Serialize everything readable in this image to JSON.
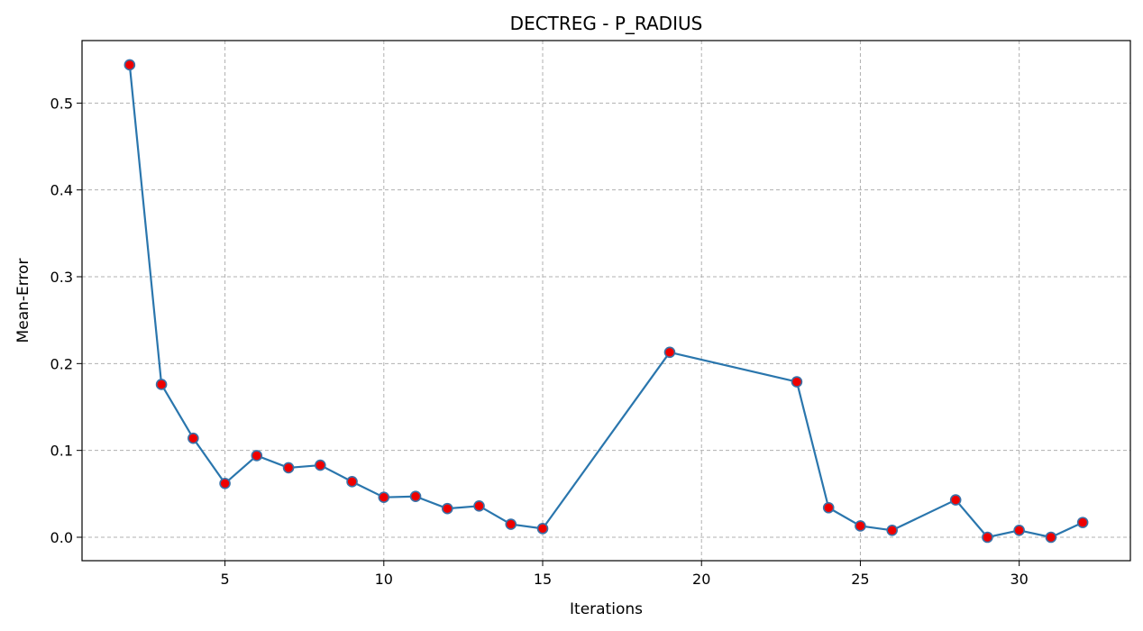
{
  "chart_data": {
    "type": "line",
    "title": "DECTREG - P_RADIUS",
    "xlabel": "Iterations",
    "ylabel": "Mean-Error",
    "xlim": [
      0.5,
      33.5
    ],
    "ylim": [
      -0.027,
      0.572
    ],
    "xticks": [
      5,
      10,
      15,
      20,
      25,
      30
    ],
    "yticks": [
      0.0,
      0.1,
      0.2,
      0.3,
      0.4,
      0.5
    ],
    "grid": true,
    "series": [
      {
        "x": [
          2,
          3,
          4,
          5,
          6,
          7,
          8,
          9,
          10,
          11,
          12,
          13,
          14,
          15,
          19,
          23,
          24,
          25,
          26,
          28,
          29,
          30,
          31,
          32
        ],
        "y": [
          0.544,
          0.176,
          0.114,
          0.062,
          0.094,
          0.08,
          0.083,
          0.064,
          0.046,
          0.047,
          0.033,
          0.036,
          0.015,
          0.01,
          0.213,
          0.179,
          0.034,
          0.013,
          0.008,
          0.043,
          0.0,
          0.008,
          0.0,
          0.017
        ],
        "line_color": "#2a76ad",
        "marker_face_color": "#ee0000",
        "marker_edge_color": "#3a72a8"
      }
    ]
  },
  "colors": {
    "grid": "#b0b0b0",
    "axes": "#000000",
    "background": "#ffffff"
  }
}
